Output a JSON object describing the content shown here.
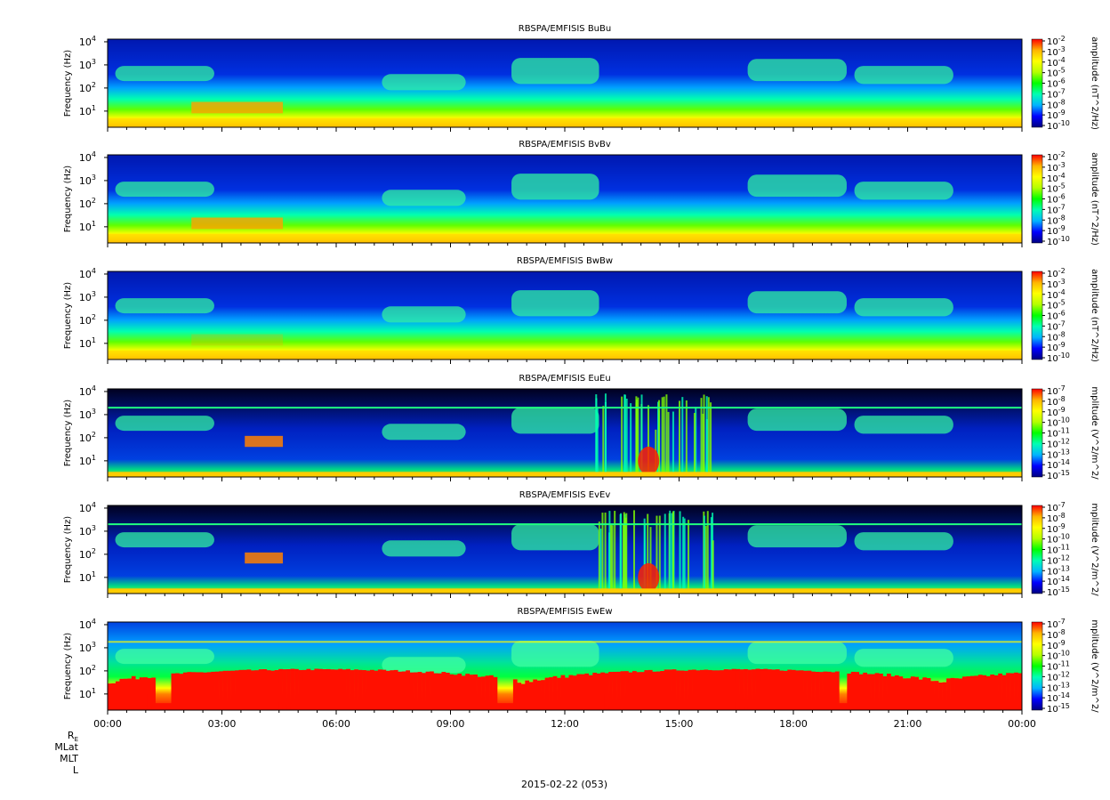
{
  "date_label": "2015-02-22 (053)",
  "row_labels": [
    "R",
    "MLat",
    "MLT",
    "L"
  ],
  "row_label_sub": "E",
  "panels": [
    {
      "title": "RBSPA/EMFISIS  BuBu",
      "colorbar_label": "amplitude (nT^2/Hz)",
      "cbar_ticks": [
        "10",
        "10",
        "10",
        "10",
        "10",
        "10",
        "10",
        "10",
        "10"
      ],
      "cbar_exps": [
        "-2",
        "-3",
        "-4",
        "-5",
        "-6",
        "-7",
        "-8",
        "-9",
        "-10"
      ]
    },
    {
      "title": "RBSPA/EMFISIS  BvBv",
      "colorbar_label": "amplitude (nT^2/Hz)",
      "cbar_ticks": [
        "10",
        "10",
        "10",
        "10",
        "10",
        "10",
        "10",
        "10",
        "10"
      ],
      "cbar_exps": [
        "-2",
        "-3",
        "-4",
        "-5",
        "-6",
        "-7",
        "-8",
        "-9",
        "-10"
      ]
    },
    {
      "title": "RBSPA/EMFISIS  BwBw",
      "colorbar_label": "amplitude (nT^2/Hz)",
      "cbar_ticks": [
        "10",
        "10",
        "10",
        "10",
        "10",
        "10",
        "10",
        "10",
        "10"
      ],
      "cbar_exps": [
        "-2",
        "-3",
        "-4",
        "-5",
        "-6",
        "-7",
        "-8",
        "-9",
        "-10"
      ]
    },
    {
      "title": "RBSPA/EMFISIS  EuEu",
      "colorbar_label": "mplitude (V^2/m^2/",
      "cbar_ticks": [
        "10",
        "10",
        "10",
        "10",
        "10",
        "10",
        "10",
        "10",
        "10"
      ],
      "cbar_exps": [
        "-7",
        "-8",
        "-9",
        "-10",
        "-11",
        "-12",
        "-13",
        "-14",
        "-15"
      ]
    },
    {
      "title": "RBSPA/EMFISIS  EvEv",
      "colorbar_label": "mplitude (V^2/m^2/",
      "cbar_ticks": [
        "10",
        "10",
        "10",
        "10",
        "10",
        "10",
        "10",
        "10",
        "10"
      ],
      "cbar_exps": [
        "-7",
        "-8",
        "-9",
        "-10",
        "-11",
        "-12",
        "-13",
        "-14",
        "-15"
      ]
    },
    {
      "title": "RBSPA/EMFISIS  EwEw",
      "colorbar_label": "mplitude (V^2/m^2/",
      "cbar_ticks": [
        "10",
        "10",
        "10",
        "10",
        "10",
        "10",
        "10",
        "10",
        "10"
      ],
      "cbar_exps": [
        "-7",
        "-8",
        "-9",
        "-10",
        "-11",
        "-12",
        "-13",
        "-14",
        "-15"
      ]
    }
  ],
  "chart_data": {
    "type": "heatmap",
    "ylabel": "Frequency (Hz)",
    "yscale": "log",
    "y_ticks": [
      "10",
      "10",
      "10",
      "10"
    ],
    "y_tick_exps": [
      "1",
      "2",
      "3",
      "4"
    ],
    "y_tick_values": [
      10,
      100,
      1000,
      10000
    ],
    "ylim": [
      2,
      13000
    ],
    "x_ticks": [
      "00:00",
      "03:00",
      "06:00",
      "09:00",
      "12:00",
      "15:00",
      "18:00",
      "21:00",
      "00:00"
    ],
    "x_tick_hours": [
      0,
      3,
      6,
      9,
      12,
      15,
      18,
      21,
      24
    ],
    "xlim_hours": [
      0,
      24
    ],
    "colormap": [
      "#000080",
      "#0000ff",
      "#00b4ff",
      "#00ffb4",
      "#00ff00",
      "#b4ff00",
      "#ffff00",
      "#ffb400",
      "#ff0000"
    ],
    "colors": {
      "background_low": "#0020c0",
      "e_field_dark": "#000018",
      "saturated": "#ff0000"
    }
  }
}
